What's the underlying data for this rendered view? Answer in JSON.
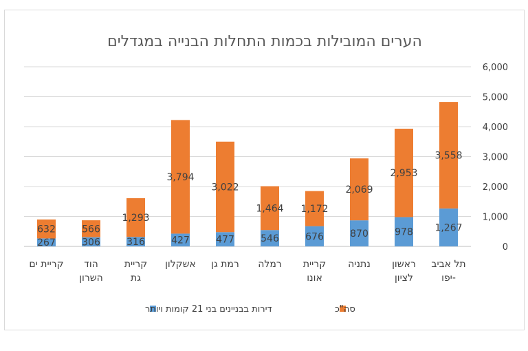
{
  "chart_data": {
    "type": "bar",
    "stacked": true,
    "title": "הערים המובילות בכמות התחלות הבנייה במגדלים",
    "categories": [
      [
        "תל אביב",
        "-יפו"
      ],
      [
        "ראשון",
        "לציון"
      ],
      [
        "נתניה"
      ],
      [
        "קריית",
        "אונו"
      ],
      [
        "רמלה"
      ],
      [
        "רמת גן"
      ],
      [
        "אשקלון"
      ],
      [
        "קריית",
        "גת"
      ],
      [
        "הוד",
        "השרון"
      ],
      [
        "קריית ים"
      ]
    ],
    "series": [
      {
        "name": "דירות בבניינים בני 21 קומות ויותר",
        "color": "#5b9bd5",
        "values": [
          1267,
          978,
          870,
          676,
          546,
          477,
          427,
          316,
          306,
          267
        ],
        "labels": [
          "1,267",
          "978",
          "870",
          "676",
          "546",
          "477",
          "427",
          "316",
          "306",
          "267"
        ]
      },
      {
        "name": "סה\"כ",
        "color": "#ed7d31",
        "values": [
          3558,
          2953,
          2069,
          1172,
          1464,
          3022,
          3794,
          1293,
          566,
          632
        ],
        "labels": [
          "3,558",
          "2,953",
          "2,069",
          "1,172",
          "1,464",
          "3,022",
          "3,794",
          "1,293",
          "566",
          "632"
        ]
      }
    ],
    "y_axis": {
      "position": "right",
      "min": 0,
      "max": 6000,
      "step": 1000,
      "tick_labels": [
        "0",
        "1,000",
        "2,000",
        "3,000",
        "4,000",
        "5,000",
        "6,000"
      ]
    },
    "grid": true,
    "legend": "bottom"
  }
}
